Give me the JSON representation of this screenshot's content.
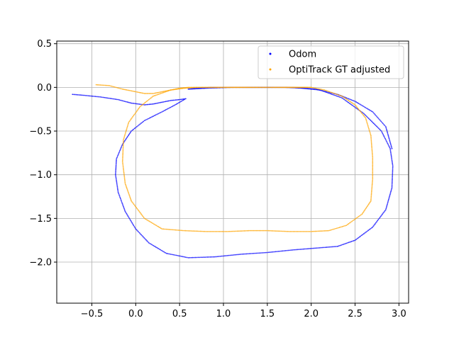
{
  "chart_data": {
    "type": "scatter",
    "xlim": [
      -0.9,
      3.11
    ],
    "ylim": [
      -2.47,
      0.53
    ],
    "x_ticks": [
      -0.5,
      0.0,
      0.5,
      1.0,
      1.5,
      2.0,
      2.5,
      3.0
    ],
    "y_ticks": [
      0.5,
      0.0,
      -0.5,
      -1.0,
      -1.5,
      -2.0
    ],
    "x_tick_labels": [
      "−0.5",
      "0.0",
      "0.5",
      "1.0",
      "1.5",
      "2.0",
      "2.5",
      "3.0"
    ],
    "y_tick_labels": [
      "0.5",
      "0.0",
      "−0.5",
      "−1.0",
      "−1.5",
      "−2.0"
    ],
    "grid": true,
    "legend_position": "top-right",
    "series": [
      {
        "name": "Odom",
        "color": "#0000ff",
        "x": [
          -0.72,
          -0.6,
          -0.4,
          -0.2,
          -0.05,
          0.1,
          0.2,
          0.3,
          0.4,
          0.5,
          0.57,
          0.45,
          0.3,
          0.1,
          -0.05,
          -0.15,
          -0.22,
          -0.23,
          -0.2,
          -0.12,
          0.0,
          0.15,
          0.35,
          0.6,
          0.9,
          1.2,
          1.5,
          1.8,
          2.05,
          2.3,
          2.5,
          2.7,
          2.85,
          2.92,
          2.93,
          2.9,
          2.8,
          2.6,
          2.35,
          2.1,
          1.9,
          1.7,
          1.4,
          1.1,
          0.85,
          0.7,
          0.6,
          0.8,
          1.1,
          1.5,
          1.8,
          2.05,
          2.3,
          2.5,
          2.7,
          2.85,
          2.92
        ],
        "y": [
          -0.08,
          -0.09,
          -0.11,
          -0.14,
          -0.18,
          -0.2,
          -0.19,
          -0.17,
          -0.15,
          -0.14,
          -0.13,
          -0.2,
          -0.28,
          -0.38,
          -0.5,
          -0.65,
          -0.82,
          -1.0,
          -1.2,
          -1.42,
          -1.62,
          -1.78,
          -1.9,
          -1.95,
          -1.94,
          -1.91,
          -1.89,
          -1.86,
          -1.84,
          -1.82,
          -1.75,
          -1.6,
          -1.4,
          -1.15,
          -0.9,
          -0.7,
          -0.5,
          -0.3,
          -0.12,
          -0.03,
          -0.01,
          0.0,
          0.0,
          0.0,
          0.0,
          -0.01,
          -0.02,
          -0.01,
          0.0,
          0.0,
          0.0,
          -0.02,
          -0.08,
          -0.16,
          -0.28,
          -0.45,
          -0.7
        ]
      },
      {
        "name": "OptiTrack GT adjusted",
        "color": "#ffa500",
        "x": [
          -0.45,
          -0.3,
          -0.15,
          0.0,
          0.1,
          0.2,
          0.3,
          0.4,
          0.5,
          0.6,
          0.7,
          0.9,
          1.2,
          1.5,
          1.8,
          2.0,
          2.15,
          2.35,
          2.5,
          2.62,
          2.68,
          2.7,
          2.7,
          2.68,
          2.58,
          2.4,
          2.2,
          2.0,
          1.75,
          1.5,
          1.3,
          1.05,
          0.8,
          0.55,
          0.3,
          0.1,
          -0.05,
          -0.12,
          -0.15,
          -0.14,
          -0.08,
          0.05,
          0.2,
          0.4,
          0.55,
          0.7,
          0.9,
          1.1,
          1.3,
          1.5,
          1.7,
          1.9,
          2.0
        ],
        "y": [
          0.03,
          0.02,
          -0.02,
          -0.05,
          -0.07,
          -0.07,
          -0.05,
          -0.03,
          -0.01,
          0.0,
          0.0,
          0.0,
          0.0,
          0.0,
          0.0,
          0.0,
          -0.03,
          -0.1,
          -0.2,
          -0.35,
          -0.55,
          -0.8,
          -1.05,
          -1.3,
          -1.45,
          -1.58,
          -1.64,
          -1.65,
          -1.65,
          -1.64,
          -1.64,
          -1.65,
          -1.65,
          -1.64,
          -1.62,
          -1.5,
          -1.3,
          -1.1,
          -0.85,
          -0.6,
          -0.4,
          -0.22,
          -0.1,
          -0.03,
          -0.01,
          0.0,
          0.0,
          0.0,
          0.0,
          0.0,
          0.0,
          0.0,
          0.0
        ]
      }
    ]
  }
}
